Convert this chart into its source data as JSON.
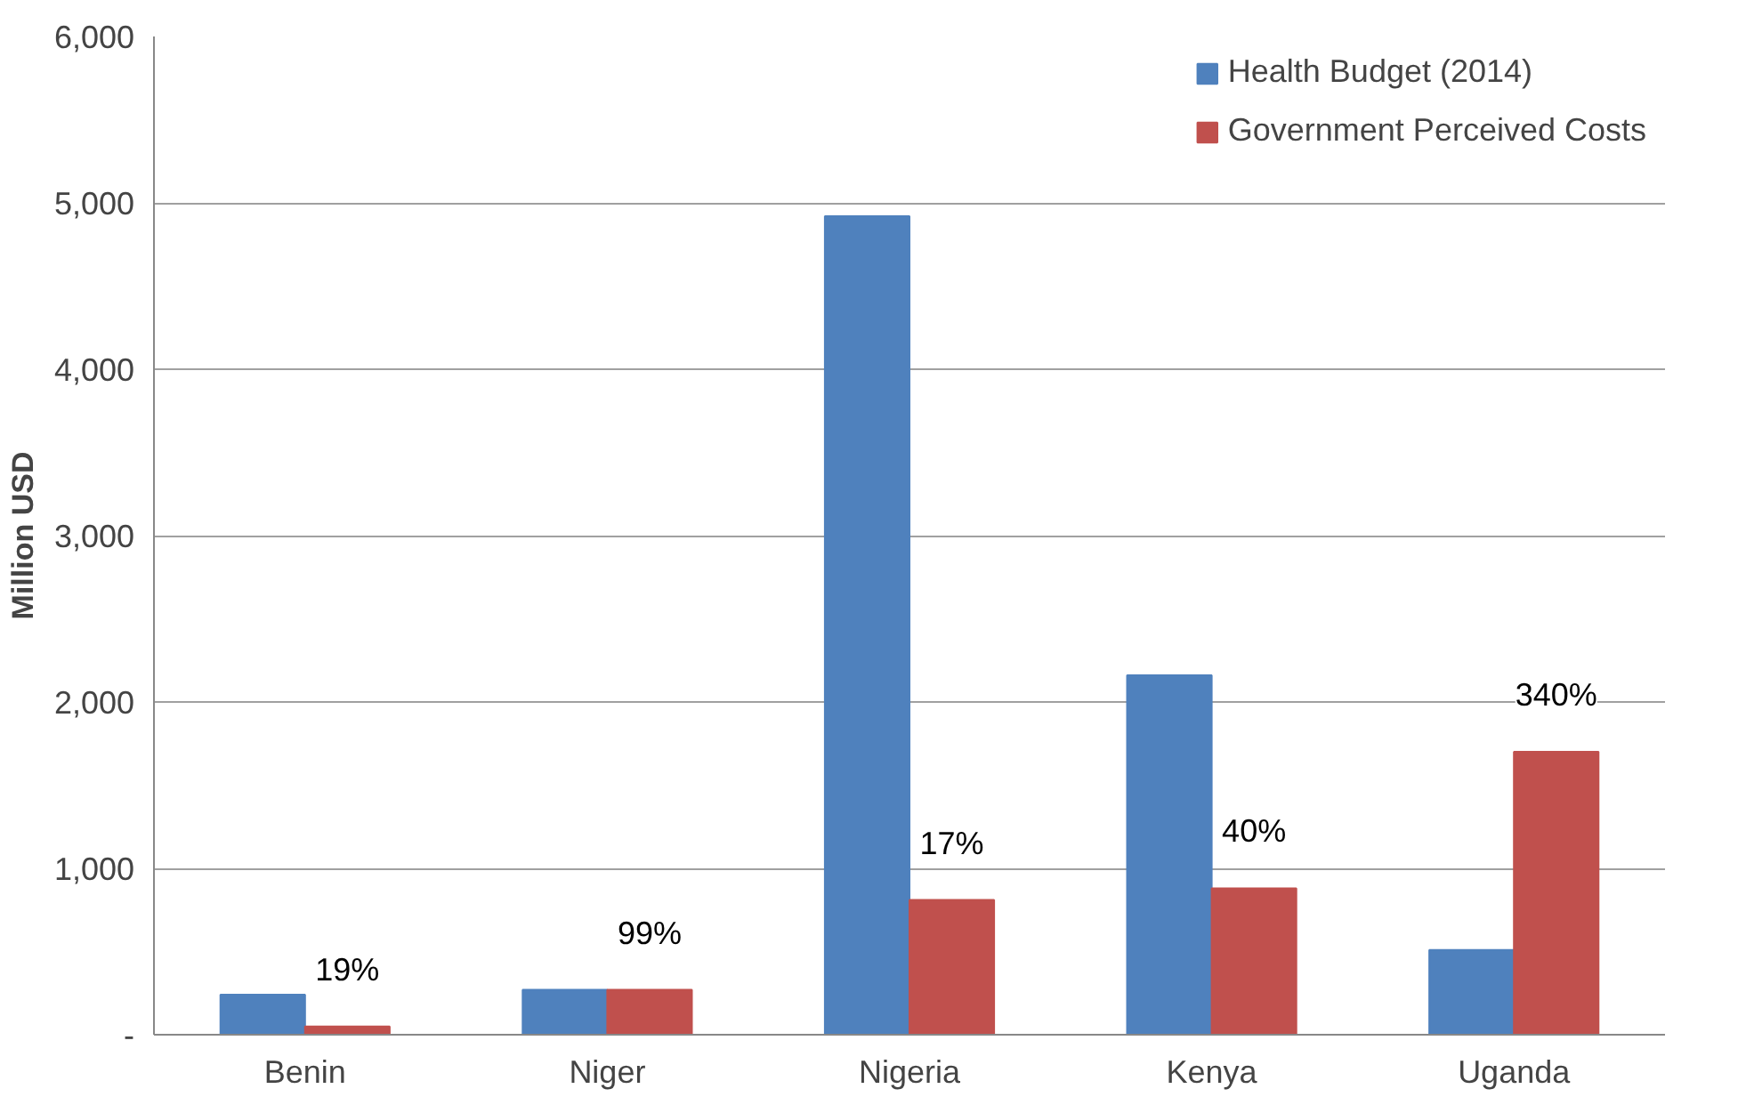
{
  "chart_data": {
    "type": "bar",
    "ylabel": "Million USD",
    "categories": [
      "Benin",
      "Niger",
      "Nigeria",
      "Kenya",
      "Uganda"
    ],
    "series": [
      {
        "name": "Health Budget (2014)",
        "color": "#4f81bd",
        "values": [
          240,
          270,
          4920,
          2160,
          510
        ]
      },
      {
        "name": "Government Perceived Costs",
        "color": "#c0504d",
        "values": [
          50,
          270,
          810,
          880,
          1700
        ]
      }
    ],
    "ylim": [
      0,
      6000
    ],
    "yticks": [
      {
        "value": 0,
        "label": "-"
      },
      {
        "value": 1000,
        "label": "1,000"
      },
      {
        "value": 2000,
        "label": "2,000"
      },
      {
        "value": 3000,
        "label": "3,000"
      },
      {
        "value": 4000,
        "label": "4,000"
      },
      {
        "value": 5000,
        "label": "5,000"
      },
      {
        "value": 6000,
        "label": "6,000"
      }
    ],
    "grid": "y",
    "legend": "top right",
    "annotations": [
      {
        "text": "19%",
        "x": "Benin",
        "y": 50
      },
      {
        "text": "99%",
        "x": "Niger",
        "y": 270
      },
      {
        "text": "17%",
        "x": "Nigeria",
        "y": 810
      },
      {
        "text": "40%",
        "x": "Kenya",
        "y": 880
      },
      {
        "text": "340%",
        "x": "Uganda",
        "y": 1700
      }
    ]
  }
}
